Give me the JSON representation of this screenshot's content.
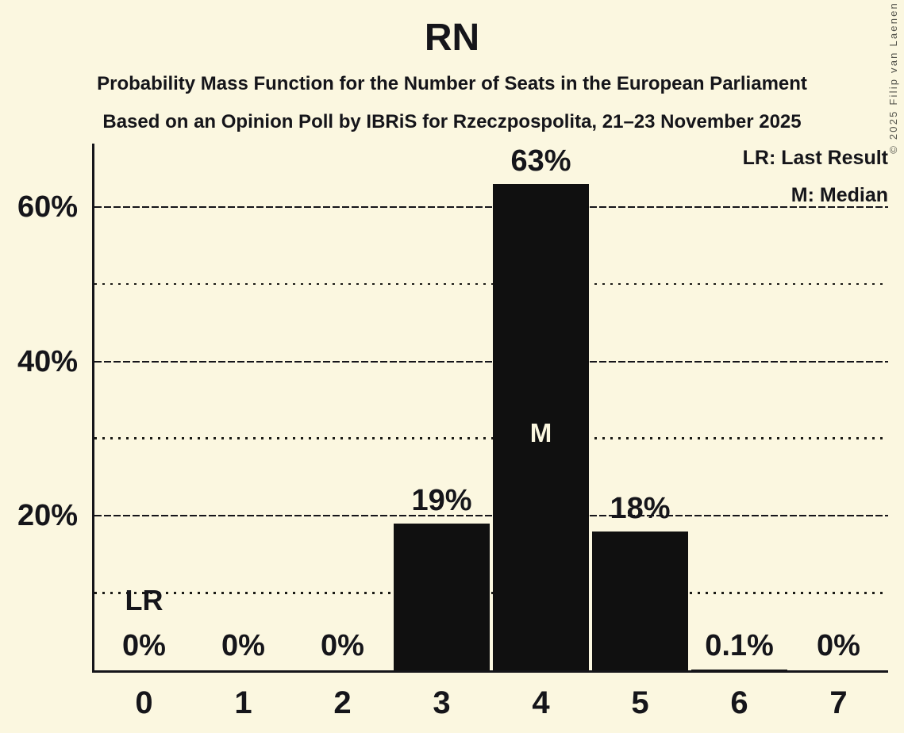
{
  "title": "RN",
  "subtitle1": "Probability Mass Function for the Number of Seats in the European Parliament",
  "subtitle2": "Based on an Opinion Poll by IBRiS for Rzeczpospolita, 21–23 November 2025",
  "legend": {
    "lr": "LR: Last Result",
    "m": "M: Median"
  },
  "copyright": "© 2025 Filip van Laenen",
  "colors": {
    "background": "#FBF7E0",
    "bar": "#101010",
    "ink": "#15151A",
    "bar_inner_label": "#FBF7E0",
    "copyright_text": "#55554D"
  },
  "chart_data": {
    "type": "bar",
    "categories": [
      "0",
      "1",
      "2",
      "3",
      "4",
      "5",
      "6",
      "7"
    ],
    "values": [
      0,
      0,
      0,
      19,
      63,
      18,
      0.1,
      0
    ],
    "value_labels": [
      "0%",
      "0%",
      "0%",
      "19%",
      "63%",
      "18%",
      "0.1%",
      "0%"
    ],
    "title": "RN",
    "xlabel": "",
    "ylabel": "",
    "ylim": [
      0,
      68.2
    ],
    "yticks": [
      {
        "value": 20,
        "label": "20%"
      },
      {
        "value": 40,
        "label": "40%"
      },
      {
        "value": 60,
        "label": "60%"
      }
    ],
    "minor_gridlines": [
      10,
      30,
      50
    ],
    "grid": "horizontal",
    "legend_position": "top-right",
    "median_index": 4,
    "median_marker": "M",
    "last_result_index": 0,
    "last_result_marker": "LR"
  }
}
